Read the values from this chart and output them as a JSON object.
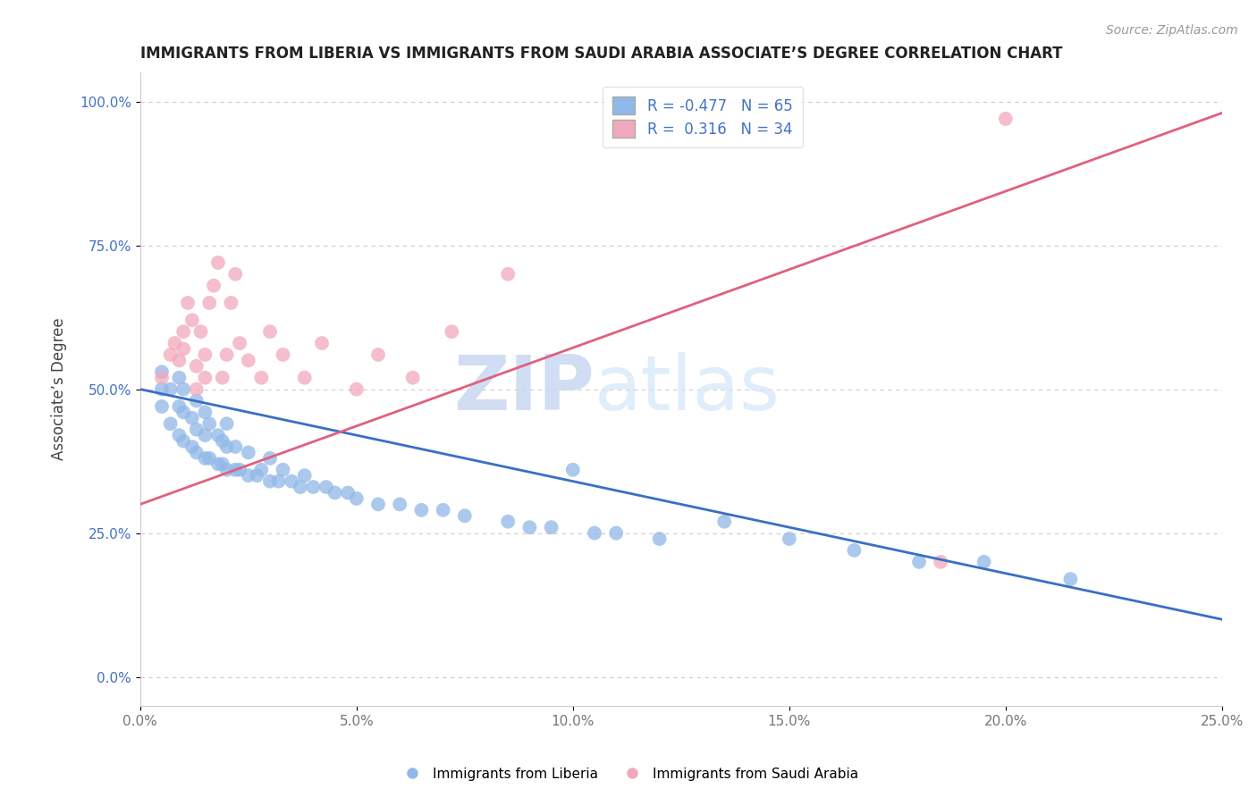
{
  "title": "IMMIGRANTS FROM LIBERIA VS IMMIGRANTS FROM SAUDI ARABIA ASSOCIATE’S DEGREE CORRELATION CHART",
  "source": "Source: ZipAtlas.com",
  "xlabel_liberia": "Immigrants from Liberia",
  "xlabel_saudi": "Immigrants from Saudi Arabia",
  "ylabel": "Associate’s Degree",
  "xlim": [
    0.0,
    0.25
  ],
  "ylim": [
    -0.05,
    1.05
  ],
  "yticks": [
    0.0,
    0.25,
    0.5,
    0.75,
    1.0
  ],
  "ytick_labels": [
    "0.0%",
    "25.0%",
    "50.0%",
    "75.0%",
    "100.0%"
  ],
  "xticks": [
    0.0,
    0.05,
    0.1,
    0.15,
    0.2,
    0.25
  ],
  "xtick_labels": [
    "0.0%",
    "5.0%",
    "10.0%",
    "15.0%",
    "20.0%",
    "25.0%"
  ],
  "R_liberia": -0.477,
  "N_liberia": 65,
  "R_saudi": 0.316,
  "N_saudi": 34,
  "color_liberia": "#90B8E8",
  "color_saudi": "#F2A8BC",
  "line_color_liberia": "#3A6FC4",
  "line_color_saudi": "#E06080",
  "watermark_zip": "ZIP",
  "watermark_atlas": "atlas",
  "blue_trend_x0": 0.0,
  "blue_trend_y0": 0.5,
  "blue_trend_x1": 0.25,
  "blue_trend_y1": 0.1,
  "pink_trend_x0": 0.0,
  "pink_trend_y0": 0.3,
  "pink_trend_x1": 0.25,
  "pink_trend_y1": 0.98,
  "blue_scatter_x": [
    0.005,
    0.005,
    0.005,
    0.007,
    0.007,
    0.009,
    0.009,
    0.009,
    0.01,
    0.01,
    0.01,
    0.012,
    0.012,
    0.013,
    0.013,
    0.013,
    0.015,
    0.015,
    0.015,
    0.016,
    0.016,
    0.018,
    0.018,
    0.019,
    0.019,
    0.02,
    0.02,
    0.02,
    0.022,
    0.022,
    0.023,
    0.025,
    0.025,
    0.027,
    0.028,
    0.03,
    0.03,
    0.032,
    0.033,
    0.035,
    0.037,
    0.038,
    0.04,
    0.043,
    0.045,
    0.048,
    0.05,
    0.055,
    0.06,
    0.065,
    0.07,
    0.075,
    0.085,
    0.09,
    0.095,
    0.1,
    0.105,
    0.11,
    0.12,
    0.135,
    0.15,
    0.165,
    0.18,
    0.195,
    0.215
  ],
  "blue_scatter_y": [
    0.47,
    0.5,
    0.53,
    0.44,
    0.5,
    0.42,
    0.47,
    0.52,
    0.41,
    0.46,
    0.5,
    0.4,
    0.45,
    0.39,
    0.43,
    0.48,
    0.38,
    0.42,
    0.46,
    0.38,
    0.44,
    0.37,
    0.42,
    0.37,
    0.41,
    0.36,
    0.4,
    0.44,
    0.36,
    0.4,
    0.36,
    0.35,
    0.39,
    0.35,
    0.36,
    0.34,
    0.38,
    0.34,
    0.36,
    0.34,
    0.33,
    0.35,
    0.33,
    0.33,
    0.32,
    0.32,
    0.31,
    0.3,
    0.3,
    0.29,
    0.29,
    0.28,
    0.27,
    0.26,
    0.26,
    0.36,
    0.25,
    0.25,
    0.24,
    0.27,
    0.24,
    0.22,
    0.2,
    0.2,
    0.17
  ],
  "pink_scatter_x": [
    0.005,
    0.007,
    0.008,
    0.009,
    0.01,
    0.01,
    0.011,
    0.012,
    0.013,
    0.013,
    0.014,
    0.015,
    0.015,
    0.016,
    0.017,
    0.018,
    0.019,
    0.02,
    0.021,
    0.022,
    0.023,
    0.025,
    0.028,
    0.03,
    0.033,
    0.038,
    0.042,
    0.05,
    0.055,
    0.063,
    0.072,
    0.085,
    0.185,
    0.2
  ],
  "pink_scatter_y": [
    0.52,
    0.56,
    0.58,
    0.55,
    0.57,
    0.6,
    0.65,
    0.62,
    0.5,
    0.54,
    0.6,
    0.52,
    0.56,
    0.65,
    0.68,
    0.72,
    0.52,
    0.56,
    0.65,
    0.7,
    0.58,
    0.55,
    0.52,
    0.6,
    0.56,
    0.52,
    0.58,
    0.5,
    0.56,
    0.52,
    0.6,
    0.7,
    0.2,
    0.97
  ]
}
